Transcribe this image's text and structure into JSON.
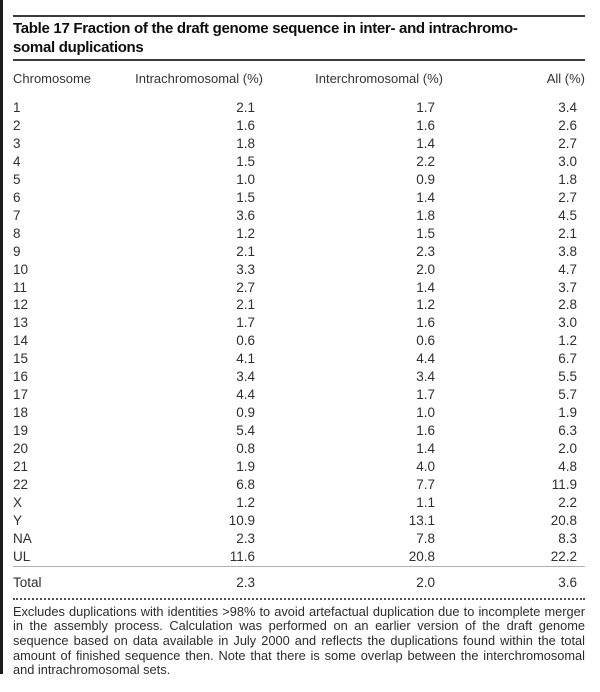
{
  "page": {
    "title_lines": [
      "Table 17 Fraction of the draft genome sequence in inter- and intrachromo-",
      "somal duplications"
    ],
    "columns": [
      "Chromosome",
      "Intrachromosomal (%)",
      "Interchromosomal (%)",
      "All (%)"
    ],
    "rows": [
      [
        "1",
        "2.1",
        "1.7",
        "3.4"
      ],
      [
        "2",
        "1.6",
        "1.6",
        "2.6"
      ],
      [
        "3",
        "1.8",
        "1.4",
        "2.7"
      ],
      [
        "4",
        "1.5",
        "2.2",
        "3.0"
      ],
      [
        "5",
        "1.0",
        "0.9",
        "1.8"
      ],
      [
        "6",
        "1.5",
        "1.4",
        "2.7"
      ],
      [
        "7",
        "3.6",
        "1.8",
        "4.5"
      ],
      [
        "8",
        "1.2",
        "1.5",
        "2.1"
      ],
      [
        "9",
        "2.1",
        "2.3",
        "3.8"
      ],
      [
        "10",
        "3.3",
        "2.0",
        "4.7"
      ],
      [
        "11",
        "2.7",
        "1.4",
        "3.7"
      ],
      [
        "12",
        "2.1",
        "1.2",
        "2.8"
      ],
      [
        "13",
        "1.7",
        "1.6",
        "3.0"
      ],
      [
        "14",
        "0.6",
        "0.6",
        "1.2"
      ],
      [
        "15",
        "4.1",
        "4.4",
        "6.7"
      ],
      [
        "16",
        "3.4",
        "3.4",
        "5.5"
      ],
      [
        "17",
        "4.4",
        "1.7",
        "5.7"
      ],
      [
        "18",
        "0.9",
        "1.0",
        "1.9"
      ],
      [
        "19",
        "5.4",
        "1.6",
        "6.3"
      ],
      [
        "20",
        "0.8",
        "1.4",
        "2.0"
      ],
      [
        "21",
        "1.9",
        "4.0",
        "4.8"
      ],
      [
        "22",
        "6.8",
        "7.7",
        "11.9"
      ],
      [
        "X",
        "1.2",
        "1.1",
        "2.2"
      ],
      [
        "Y",
        "10.9",
        "13.1",
        "20.8"
      ],
      [
        "NA",
        "2.3",
        "7.8",
        "8.3"
      ],
      [
        "UL",
        "11.6",
        "20.8",
        "22.2"
      ]
    ],
    "total_row": [
      "Total",
      "2.3",
      "2.0",
      "3.6"
    ],
    "footnote": "Excludes duplications with identities >98% to avoid artefactual duplication due to incomplete merger in the assembly process. Calculation was performed on an earlier version of the draft genome sequence based on data available in July 2000 and reflects the duplications found within the total amount of finished sequence then. Note that there is some overlap between the interchromosomal and intrachromosomal sets.",
    "colors": {
      "text": "#2f2f2f",
      "title": "#0d0d0d",
      "rule": "#3b3b3b",
      "hairline": "#b0b0b0"
    }
  }
}
